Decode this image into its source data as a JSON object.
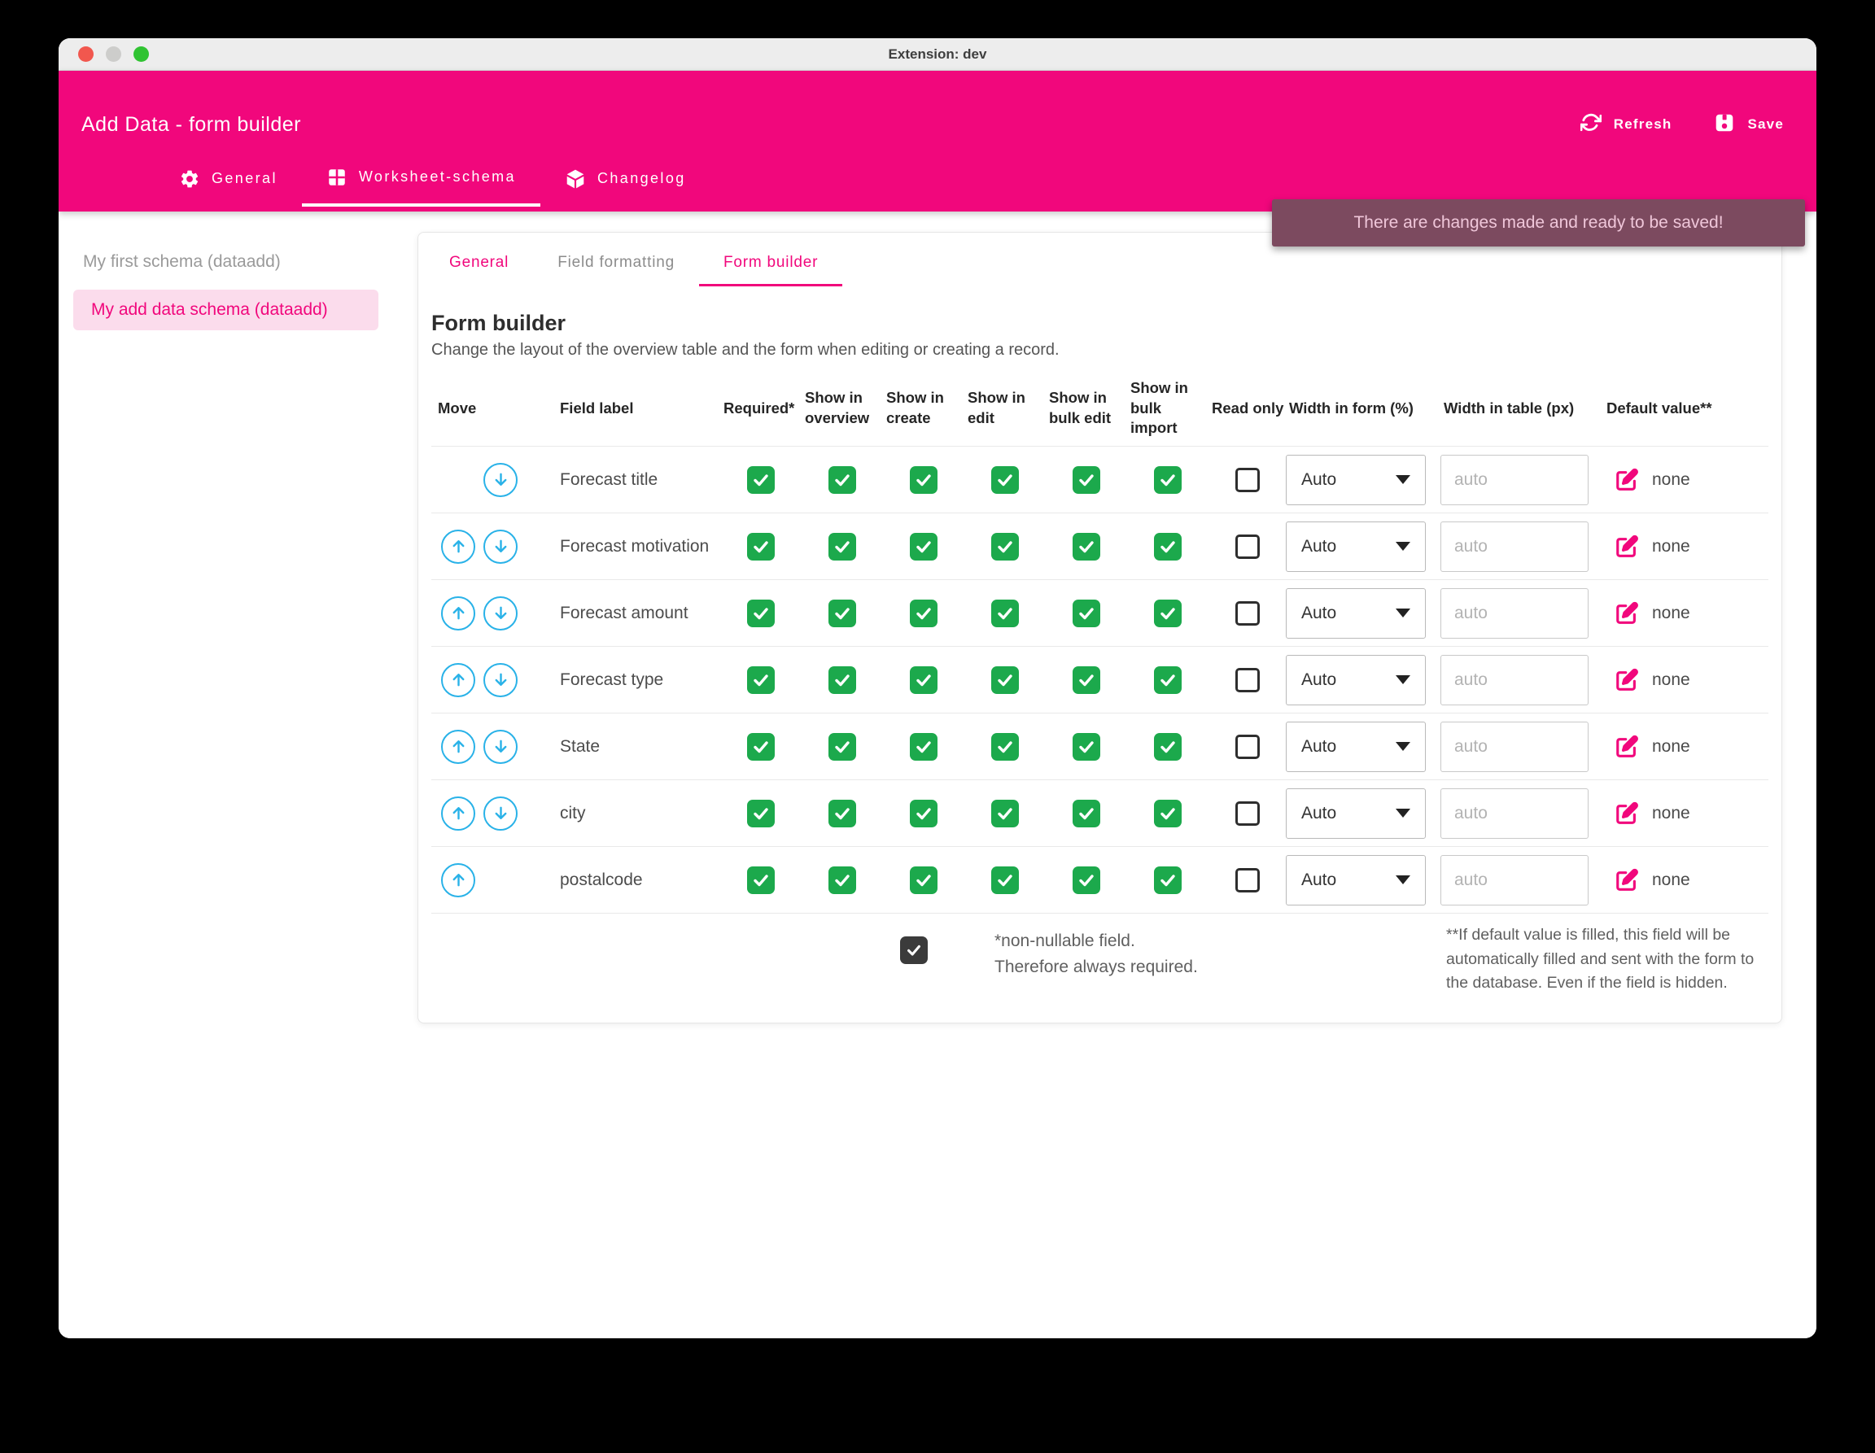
{
  "window": {
    "title": "Extension: dev"
  },
  "appbar": {
    "title": "Add Data - form builder",
    "actions": [
      {
        "label": "Refresh",
        "icon": "refresh-icon"
      },
      {
        "label": "Save",
        "icon": "save-icon"
      }
    ],
    "tabs": [
      {
        "label": "General",
        "icon": "gear-icon",
        "active": false
      },
      {
        "label": "Worksheet-schema",
        "icon": "grid-icon",
        "active": true
      },
      {
        "label": "Changelog",
        "icon": "package-icon",
        "active": false
      }
    ]
  },
  "notification": {
    "text": "There are changes made and ready to be saved!"
  },
  "sidebar": {
    "items": [
      {
        "label": "My first schema (dataadd)",
        "selected": false
      },
      {
        "label": "My add data schema (dataadd)",
        "selected": true
      }
    ]
  },
  "panel": {
    "tabs": [
      {
        "label": "General",
        "active": false
      },
      {
        "label": "Field formatting",
        "active": false
      },
      {
        "label": "Form builder",
        "active": true
      }
    ],
    "heading": "Form builder",
    "description": "Change the layout of the overview table and the form when editing or creating a record.",
    "table": {
      "columns": [
        "Move",
        "Field label",
        "Required*",
        "Show in overview",
        "Show in create",
        "Show in edit",
        "Show in bulk edit",
        "Show in bulk import",
        "Read only",
        "Width in form (%)",
        "Width in table (px)",
        "Default value**"
      ],
      "width_input_placeholder": "auto",
      "rows": [
        {
          "label": "Forecast title",
          "up": false,
          "down": true,
          "checks": [
            true,
            true,
            true,
            true,
            true,
            true
          ],
          "read_only": false,
          "width_form": "Auto",
          "width_table": "",
          "default_value": "none"
        },
        {
          "label": "Forecast motivation",
          "up": true,
          "down": true,
          "checks": [
            true,
            true,
            true,
            true,
            true,
            true
          ],
          "read_only": false,
          "width_form": "Auto",
          "width_table": "",
          "default_value": "none"
        },
        {
          "label": "Forecast amount",
          "up": true,
          "down": true,
          "checks": [
            true,
            true,
            true,
            true,
            true,
            true
          ],
          "read_only": false,
          "width_form": "Auto",
          "width_table": "",
          "default_value": "none"
        },
        {
          "label": "Forecast type",
          "up": true,
          "down": true,
          "checks": [
            true,
            true,
            true,
            true,
            true,
            true
          ],
          "read_only": false,
          "width_form": "Auto",
          "width_table": "",
          "default_value": "none"
        },
        {
          "label": "State",
          "up": true,
          "down": true,
          "checks": [
            true,
            true,
            true,
            true,
            true,
            true
          ],
          "read_only": false,
          "width_form": "Auto",
          "width_table": "",
          "default_value": "none"
        },
        {
          "label": "city",
          "up": true,
          "down": true,
          "checks": [
            true,
            true,
            true,
            true,
            true,
            true
          ],
          "read_only": false,
          "width_form": "Auto",
          "width_table": "",
          "default_value": "none"
        },
        {
          "label": "postalcode",
          "up": true,
          "down": false,
          "checks": [
            true,
            true,
            true,
            true,
            true,
            true
          ],
          "read_only": false,
          "width_form": "Auto",
          "width_table": "",
          "default_value": "none"
        }
      ]
    },
    "footnotes": {
      "left_checkbox_checked": true,
      "left_line1": "*non-nullable field.",
      "left_line2": "Therefore always required.",
      "right": "**If default value is filled, this field will be automatically filled and sent with the form to the database. Even if the field is hidden."
    }
  },
  "colors": {
    "accent_pink": "#F1077C",
    "light_pink": "#FBDCEC",
    "check_green": "#1CA94C",
    "move_cyan": "#29B2E8",
    "notification_bg": "#7C4A5F"
  }
}
